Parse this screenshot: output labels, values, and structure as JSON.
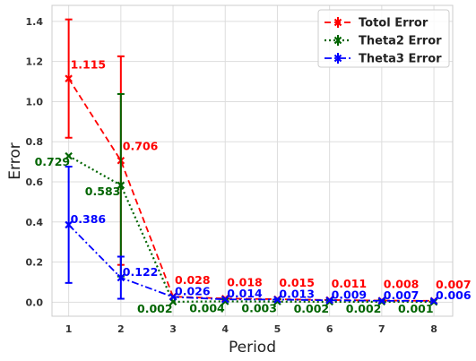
{
  "chart_data": {
    "type": "line",
    "xlabel": "Period",
    "ylabel": "Error",
    "x": [
      1,
      2,
      3,
      4,
      5,
      6,
      7,
      8
    ],
    "xlim": [
      0.68,
      8.36
    ],
    "ylim": [
      -0.07,
      1.48
    ],
    "xticks": [
      "1",
      "2",
      "3",
      "4",
      "5",
      "6",
      "7",
      "8"
    ],
    "yticks": [
      "0.0",
      "0.2",
      "0.4",
      "0.6",
      "0.8",
      "1.0",
      "1.2",
      "1.4"
    ],
    "grid": true,
    "legend_position": "top-right",
    "series": [
      {
        "name": "Totol Error",
        "color": "#ff0000",
        "linestyle": "dashed",
        "values": [
          1.115,
          0.706,
          0.028,
          0.018,
          0.015,
          0.011,
          0.008,
          0.007
        ],
        "labels": [
          "1.115",
          "0.706",
          "0.028",
          "0.018",
          "0.015",
          "0.011",
          "0.008",
          "0.007"
        ],
        "errors": [
          0.295,
          0.52,
          0.0,
          0.0,
          0.0,
          0.0,
          0.0,
          0.0
        ]
      },
      {
        "name": "Theta2 Error",
        "color": "#006400",
        "linestyle": "dotted",
        "values": [
          0.729,
          0.583,
          0.002,
          0.004,
          0.003,
          0.002,
          0.002,
          0.001
        ],
        "labels": [
          "0.729",
          "0.583",
          "0.002",
          "0.004",
          "0.003",
          "0.002",
          "0.002",
          "0.001"
        ],
        "errors": [
          0.0,
          0.455,
          0.0,
          0.0,
          0.0,
          0.0,
          0.0,
          0.0
        ]
      },
      {
        "name": "Theta3 Error",
        "color": "#0000ff",
        "linestyle": "dashdot",
        "values": [
          0.386,
          0.122,
          0.026,
          0.014,
          0.013,
          0.009,
          0.007,
          0.006
        ],
        "labels": [
          "0.386",
          "0.122",
          "0.026",
          "0.014",
          "0.013",
          "0.009",
          "0.007",
          "0.006"
        ],
        "errors": [
          0.29,
          0.105,
          0.0,
          0.0,
          0.0,
          0.0,
          0.0,
          0.0
        ]
      }
    ]
  }
}
